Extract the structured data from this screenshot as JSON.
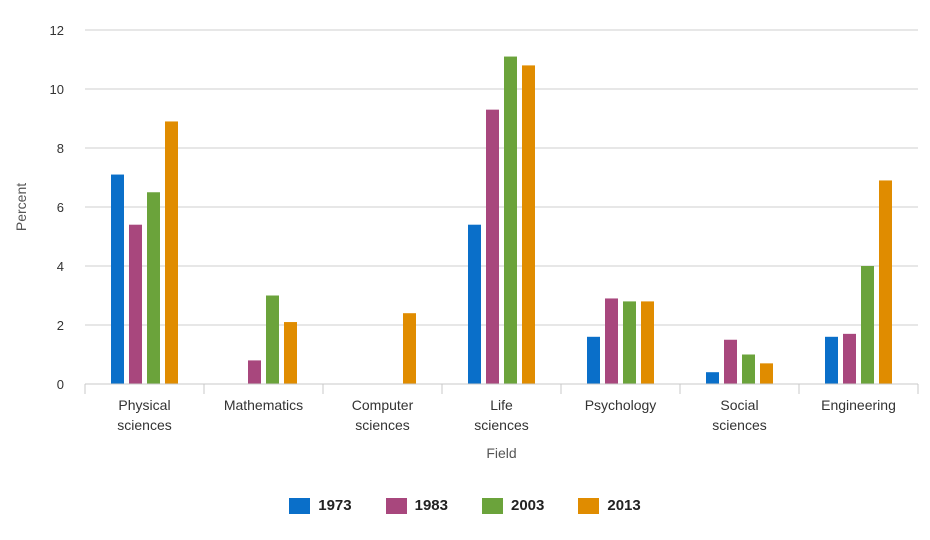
{
  "chart_data": {
    "type": "bar",
    "title": "",
    "xlabel": "Field",
    "ylabel": "Percent",
    "ylim": [
      0,
      12
    ],
    "yticks": [
      0,
      2,
      4,
      6,
      8,
      10,
      12
    ],
    "grid": true,
    "legend_position": "bottom",
    "categories": [
      [
        "Physical",
        "sciences"
      ],
      [
        "Mathematics"
      ],
      [
        "Computer",
        "sciences"
      ],
      [
        "Life",
        "sciences"
      ],
      [
        "Psychology"
      ],
      [
        "Social",
        "sciences"
      ],
      [
        "Engineering"
      ]
    ],
    "series": [
      {
        "name": "1973",
        "color": "#0a6fc9",
        "values": [
          7.1,
          0,
          0,
          5.4,
          1.6,
          0.4,
          1.6
        ]
      },
      {
        "name": "1983",
        "color": "#a8477d",
        "values": [
          5.4,
          0.8,
          0,
          9.3,
          2.9,
          1.5,
          1.7
        ]
      },
      {
        "name": "2003",
        "color": "#6ba33b",
        "values": [
          6.5,
          3.0,
          0,
          11.1,
          2.8,
          1.0,
          4.0
        ]
      },
      {
        "name": "2013",
        "color": "#e08c00",
        "values": [
          8.9,
          2.1,
          2.4,
          10.8,
          2.8,
          0.7,
          6.9
        ]
      }
    ]
  }
}
